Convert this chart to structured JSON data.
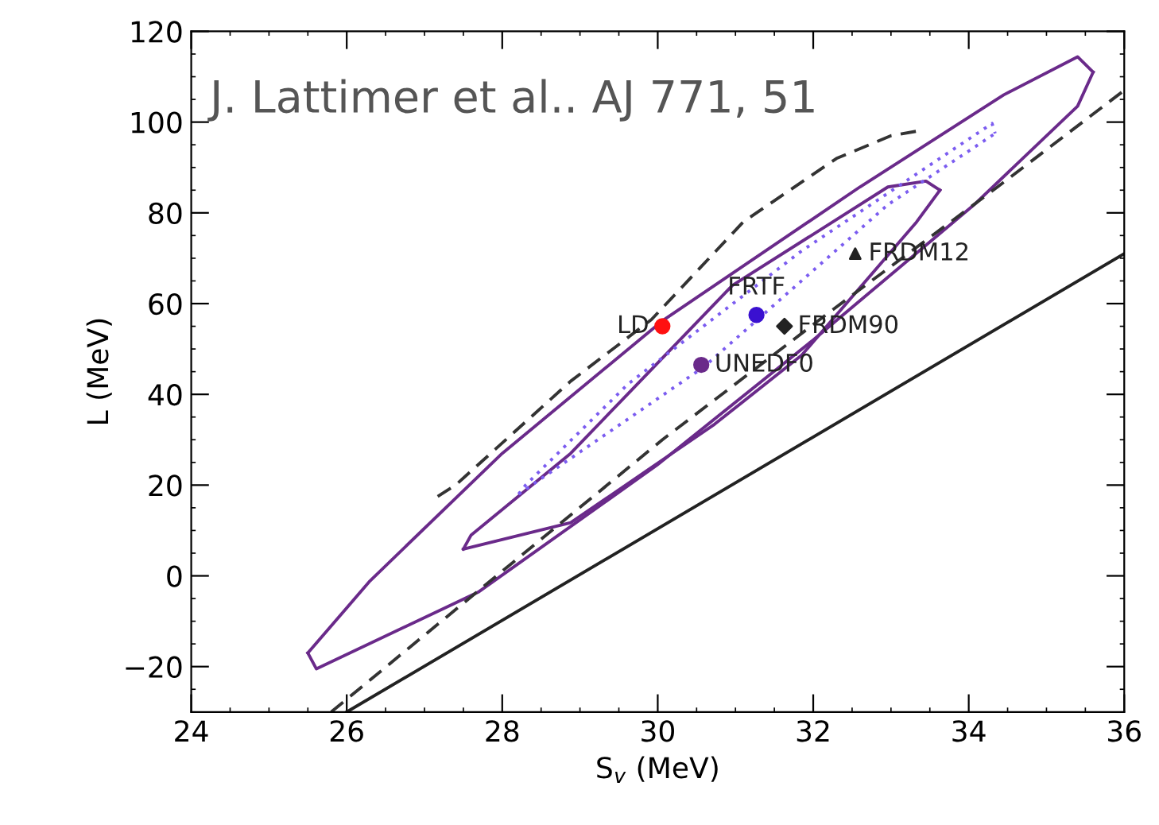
{
  "chart_data": {
    "type": "scatter",
    "xlabel": "S$_{v}$ (MeV)",
    "ylabel": "L (MeV)",
    "xlim": [
      24,
      36
    ],
    "xticks": [
      24,
      26,
      28,
      30,
      32,
      34,
      36
    ],
    "ylim": [
      -30,
      120
    ],
    "yticks": [
      -20,
      0,
      20,
      40,
      60,
      80,
      100,
      120
    ],
    "grid": false,
    "legend": false,
    "annotations": [
      "J. Lattimer et al.. AJ 771, 51"
    ],
    "series": [
      {
        "type": "line",
        "color": "#6a2a8a",
        "line_style": "solid",
        "marker": "none",
        "x": [
          25.5,
          25.61,
          27.69,
          29.99,
          32.0,
          34.07,
          35.4,
          35.6
        ],
        "values": [
          -17,
          -20.5,
          -3.6,
          24.4,
          52,
          81.8,
          103.5,
          111
        ]
      },
      {
        "type": "line",
        "color": "#6a2a8a",
        "line_style": "solid",
        "marker": "none",
        "x": [
          25.5,
          26.3,
          28.0,
          30.06,
          32.6,
          34.45,
          35.4,
          35.6
        ],
        "values": [
          -17,
          -1.1,
          27,
          56.2,
          85.7,
          106,
          114.4,
          111
        ]
      },
      {
        "type": "line",
        "color": "#6a2a8a",
        "line_style": "solid",
        "marker": "none",
        "x": [
          27.5,
          28.88,
          30.73,
          31.85,
          33.33,
          33.63
        ],
        "values": [
          5.9,
          11.7,
          33.4,
          48.6,
          78,
          85
        ]
      },
      {
        "type": "line",
        "color": "#6a2a8a",
        "line_style": "solid",
        "marker": "none",
        "x": [
          27.5,
          27.6,
          28.88,
          30.96,
          32.96,
          33.45,
          33.63
        ],
        "values": [
          5.9,
          9,
          27,
          64,
          85.7,
          87,
          85
        ]
      },
      {
        "type": "line",
        "color": "#7b5cf0",
        "line_style": "dotted",
        "marker": "none",
        "x": [
          28.21,
          30.59,
          32.96,
          34.34
        ],
        "values": [
          18,
          46,
          81.8,
          97.5
        ]
      },
      {
        "type": "line",
        "color": "#7b5cf0",
        "line_style": "dotted",
        "marker": "none",
        "x": [
          28.21,
          28.3,
          29.62,
          31.85,
          34.3,
          34.34
        ],
        "values": [
          18,
          20,
          42.3,
          71.6,
          99.7,
          97.5
        ]
      },
      {
        "type": "line",
        "color": "#333333",
        "line_style": "dashed",
        "marker": "none",
        "x": [
          27.17,
          27.4,
          28.88,
          29.92,
          31.1,
          32.3,
          33.0,
          33.33
        ],
        "values": [
          17.5,
          20,
          42.9,
          56.5,
          78,
          92,
          97,
          98
        ]
      },
      {
        "type": "line",
        "color": "#333333",
        "line_style": "dashed",
        "marker": "none",
        "x": [
          25.8,
          28.14,
          30.06,
          32.2,
          34.37,
          36
        ],
        "values": [
          -30,
          3,
          30,
          58,
          85.7,
          107
        ]
      },
      {
        "type": "line",
        "color": "#222222",
        "line_style": "solid",
        "marker": "none",
        "x": [
          26,
          36
        ],
        "values": [
          -30,
          71
        ]
      },
      {
        "name": "LD",
        "color": "#ff1010",
        "marker": "circle",
        "x": [
          30.06
        ],
        "values": [
          55
        ]
      },
      {
        "name": "FRTF",
        "color": "#3a10d0",
        "marker": "circle",
        "x": [
          31.27
        ],
        "values": [
          57.5
        ]
      },
      {
        "name": "FRDM90",
        "color": "#222222",
        "marker": "diamond",
        "x": [
          31.63
        ],
        "values": [
          55
        ]
      },
      {
        "name": "FRDM12",
        "color": "#222222",
        "marker": "triangle",
        "x": [
          32.54
        ],
        "values": [
          71
        ]
      },
      {
        "name": "UNEDF0",
        "color": "#6a2a8a",
        "marker": "circle",
        "x": [
          30.56
        ],
        "values": [
          46.5
        ]
      }
    ]
  }
}
